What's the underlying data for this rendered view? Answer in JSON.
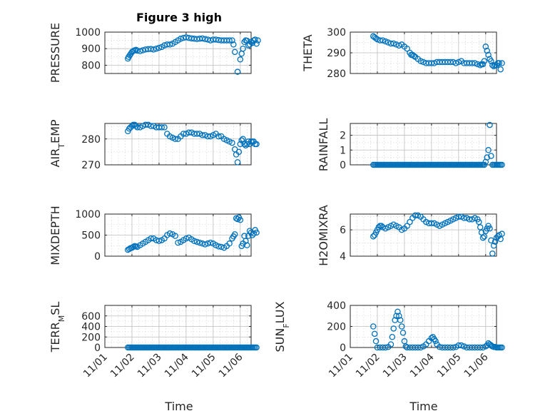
{
  "title": "Figure 3 high",
  "colors": {
    "series": "#0072BD",
    "axes": "#262626"
  },
  "chart_data": [
    {
      "type": "scatter",
      "ylabel": "PRESSURE",
      "xlim": [
        0,
        5.4
      ],
      "ylim": [
        750,
        1000
      ],
      "yticks": [
        800,
        900,
        1000
      ],
      "ytick_labels": [
        "800",
        "900",
        "1000"
      ],
      "minor_y": [
        850,
        950
      ],
      "grid": true,
      "x": [
        0.85,
        0.88,
        0.92,
        0.96,
        1.0,
        1.05,
        1.1,
        1.15,
        1.2,
        1.3,
        1.4,
        1.5,
        1.6,
        1.7,
        1.8,
        1.9,
        2.0,
        2.1,
        2.2,
        2.3,
        2.4,
        2.5,
        2.6,
        2.7,
        2.8,
        2.9,
        3.0,
        3.1,
        3.2,
        3.3,
        3.4,
        3.5,
        3.6,
        3.7,
        3.8,
        3.9,
        4.0,
        4.1,
        4.2,
        4.3,
        4.4,
        4.5,
        4.6,
        4.7,
        4.8,
        4.9,
        5.0,
        5.05,
        5.1,
        5.15,
        5.2,
        5.25,
        5.3,
        5.35,
        5.4,
        5.45,
        5.5,
        5.55,
        5.6,
        5.65,
        4.75
      ],
      "y": [
        840,
        850,
        860,
        870,
        880,
        886,
        890,
        893,
        888,
        885,
        890,
        895,
        897,
        898,
        895,
        900,
        905,
        910,
        920,
        925,
        925,
        930,
        940,
        950,
        960,
        965,
        968,
        965,
        962,
        960,
        958,
        960,
        962,
        958,
        955,
        950,
        955,
        955,
        952,
        950,
        950,
        950,
        950,
        950,
        880,
        760,
        835,
        870,
        900,
        940,
        950,
        948,
        920,
        925,
        940,
        935,
        950,
        955,
        930,
        950,
        925
      ]
    },
    {
      "type": "scatter",
      "ylabel": "THETA",
      "xlim": [
        0,
        5.4
      ],
      "ylim": [
        280,
        300
      ],
      "yticks": [
        280,
        290,
        300
      ],
      "ytick_labels": [
        "280",
        "290",
        "300"
      ],
      "minor_y": [
        285,
        295
      ],
      "grid": true,
      "x": [
        0.85,
        0.9,
        0.95,
        1.0,
        1.1,
        1.2,
        1.3,
        1.4,
        1.5,
        1.6,
        1.7,
        1.8,
        1.9,
        2.0,
        2.1,
        2.2,
        2.25,
        2.3,
        2.35,
        2.4,
        2.5,
        2.6,
        2.7,
        2.8,
        2.9,
        3.0,
        3.1,
        3.2,
        3.3,
        3.4,
        3.5,
        3.6,
        3.7,
        3.8,
        3.9,
        4.0,
        4.1,
        4.2,
        4.3,
        4.4,
        4.5,
        4.6,
        4.7,
        4.8,
        4.85,
        4.9,
        4.95,
        5.0,
        5.05,
        5.1,
        5.15,
        5.2,
        5.25,
        5.3,
        5.35,
        5.4,
        5.45,
        5.5,
        5.55,
        5.6
      ],
      "y": [
        298,
        297.5,
        297,
        296.5,
        296,
        296,
        295.5,
        295,
        294.5,
        294.5,
        294,
        293.5,
        294,
        293,
        292,
        290,
        289,
        289,
        288.5,
        288,
        287,
        286,
        285.5,
        285,
        285,
        285,
        285,
        285.5,
        285.5,
        285.5,
        285.5,
        285.5,
        285.5,
        285.5,
        285,
        285.5,
        286,
        285,
        285,
        285,
        285,
        285,
        284.5,
        284,
        284.5,
        284.5,
        286,
        293,
        291,
        289,
        287,
        286,
        284,
        283.5,
        284,
        284,
        285,
        285,
        282,
        285
      ]
    },
    {
      "type": "scatter",
      "ylabel": "AIR_TEMP",
      "xlim": [
        0,
        5.4
      ],
      "ylim": [
        270,
        286
      ],
      "yticks": [
        270,
        280
      ],
      "ytick_labels": [
        "270",
        "280"
      ],
      "minor_y": [
        275,
        285
      ],
      "grid": true,
      "x": [
        0.85,
        0.9,
        0.95,
        1.0,
        1.05,
        1.1,
        1.15,
        1.2,
        1.3,
        1.4,
        1.5,
        1.6,
        1.7,
        1.8,
        1.9,
        2.0,
        2.1,
        2.2,
        2.3,
        2.4,
        2.5,
        2.6,
        2.7,
        2.8,
        2.9,
        3.0,
        3.1,
        3.2,
        3.3,
        3.4,
        3.5,
        3.6,
        3.7,
        3.8,
        3.9,
        4.0,
        4.1,
        4.2,
        4.3,
        4.4,
        4.5,
        4.6,
        4.7,
        4.8,
        4.85,
        4.9,
        4.95,
        5.0,
        5.05,
        5.1,
        5.15,
        5.2,
        5.25,
        5.3,
        5.35,
        5.4,
        5.45,
        5.5,
        5.55,
        5.6
      ],
      "y": [
        283,
        284,
        284.5,
        285,
        285.5,
        285.5,
        285,
        284.5,
        284.5,
        285,
        285.5,
        285.5,
        285,
        285,
        284.5,
        284.5,
        284.5,
        284.5,
        282,
        281,
        280.5,
        280,
        280,
        281,
        282,
        282,
        282.5,
        282.5,
        282,
        282,
        282,
        281.5,
        281.5,
        281,
        281,
        281.5,
        282,
        281,
        281,
        280,
        279.5,
        279,
        278.5,
        276,
        274,
        271,
        275,
        278,
        279.5,
        280,
        278,
        277.5,
        278,
        279,
        278,
        279,
        279,
        279,
        278,
        278
      ]
    },
    {
      "type": "scatter",
      "ylabel": "RAINFALL",
      "xlim": [
        0,
        5.4
      ],
      "ylim": [
        0,
        2.8
      ],
      "yticks": [
        0,
        1,
        2
      ],
      "ytick_labels": [
        "0",
        "1",
        "2"
      ],
      "minor_y": [
        0.5,
        1.5,
        2.5
      ],
      "grid": true,
      "x": [
        0.85,
        0.9,
        0.95,
        1.0,
        1.05,
        1.1,
        1.15,
        1.2,
        1.25,
        1.3,
        1.35,
        1.4,
        1.45,
        1.5,
        1.55,
        1.6,
        1.65,
        1.7,
        1.75,
        1.8,
        1.85,
        1.9,
        1.95,
        2.0,
        2.05,
        2.1,
        2.15,
        2.2,
        2.25,
        2.3,
        2.35,
        2.4,
        2.45,
        2.5,
        2.55,
        2.6,
        2.65,
        2.7,
        2.75,
        2.8,
        2.85,
        2.9,
        2.95,
        3.0,
        3.05,
        3.1,
        3.15,
        3.2,
        3.25,
        3.3,
        3.35,
        3.4,
        3.45,
        3.5,
        3.55,
        3.6,
        3.65,
        3.7,
        3.75,
        3.8,
        3.85,
        3.9,
        3.95,
        4.0,
        4.05,
        4.1,
        4.15,
        4.2,
        4.25,
        4.3,
        4.35,
        4.4,
        4.45,
        4.5,
        4.55,
        4.6,
        4.65,
        4.7,
        4.75,
        4.8,
        4.85,
        4.9,
        4.95,
        5.0,
        5.05,
        5.1,
        5.15,
        5.2,
        5.25,
        5.3,
        5.35,
        5.4,
        5.45,
        5.5,
        5.55,
        5.6
      ],
      "y": [
        0,
        0,
        0,
        0,
        0,
        0,
        0,
        0,
        0,
        0,
        0,
        0,
        0,
        0,
        0,
        0,
        0,
        0,
        0,
        0,
        0,
        0,
        0,
        0,
        0,
        0,
        0,
        0,
        0,
        0,
        0,
        0,
        0,
        0,
        0,
        0,
        0,
        0,
        0,
        0,
        0,
        0,
        0,
        0,
        0,
        0,
        0,
        0,
        0,
        0,
        0,
        0,
        0,
        0,
        0,
        0,
        0,
        0,
        0,
        0,
        0,
        0,
        0,
        0,
        0,
        0,
        0,
        0,
        0,
        0,
        0,
        0,
        0,
        0,
        0,
        0,
        0,
        0,
        0,
        0,
        0,
        0,
        0,
        0.2,
        0.5,
        1.0,
        2.7,
        0.6,
        0,
        0,
        0,
        0,
        0,
        0,
        0,
        0
      ]
    },
    {
      "type": "scatter",
      "ylabel": "MIXDEPTH",
      "xlim": [
        0,
        5.4
      ],
      "ylim": [
        0,
        1000
      ],
      "yticks": [
        0,
        500,
        1000
      ],
      "ytick_labels": [
        "0",
        "500",
        "1000"
      ],
      "minor_y": [
        250,
        750
      ],
      "grid": true,
      "x": [
        0.85,
        0.9,
        0.95,
        1.0,
        1.05,
        1.1,
        1.15,
        1.2,
        1.3,
        1.4,
        1.5,
        1.6,
        1.7,
        1.8,
        1.9,
        2.0,
        2.1,
        2.2,
        2.3,
        2.4,
        2.5,
        2.6,
        2.7,
        2.8,
        2.9,
        3.0,
        3.1,
        3.2,
        3.3,
        3.4,
        3.5,
        3.6,
        3.7,
        3.8,
        3.9,
        4.0,
        4.1,
        4.2,
        4.3,
        4.4,
        4.5,
        4.6,
        4.7,
        4.75,
        4.8,
        4.85,
        4.9,
        4.95,
        5.0,
        5.05,
        5.1,
        5.15,
        5.2,
        5.25,
        5.3,
        5.35,
        5.4,
        5.45,
        5.5,
        5.55,
        5.6
      ],
      "y": [
        150,
        170,
        190,
        200,
        220,
        240,
        230,
        220,
        260,
        300,
        340,
        380,
        420,
        420,
        380,
        360,
        380,
        420,
        500,
        540,
        520,
        480,
        320,
        340,
        380,
        420,
        440,
        400,
        360,
        340,
        320,
        300,
        280,
        300,
        320,
        300,
        260,
        230,
        220,
        200,
        240,
        300,
        420,
        470,
        520,
        900,
        880,
        920,
        860,
        240,
        300,
        480,
        360,
        260,
        480,
        600,
        560,
        500,
        540,
        620,
        560
      ]
    },
    {
      "type": "scatter",
      "ylabel": "H2OMIXRA",
      "xlim": [
        0,
        5.4
      ],
      "ylim": [
        4,
        7.2
      ],
      "yticks": [
        4,
        6
      ],
      "ytick_labels": [
        "4",
        "6"
      ],
      "minor_y": [
        5,
        7
      ],
      "grid": true,
      "x": [
        0.85,
        0.9,
        0.95,
        1.0,
        1.05,
        1.1,
        1.15,
        1.2,
        1.3,
        1.4,
        1.5,
        1.6,
        1.7,
        1.8,
        1.9,
        2.0,
        2.1,
        2.2,
        2.3,
        2.4,
        2.5,
        2.6,
        2.7,
        2.8,
        2.9,
        3.0,
        3.1,
        3.2,
        3.3,
        3.4,
        3.5,
        3.6,
        3.7,
        3.8,
        3.9,
        4.0,
        4.1,
        4.2,
        4.3,
        4.4,
        4.5,
        4.6,
        4.7,
        4.75,
        4.8,
        4.85,
        4.9,
        4.95,
        5.0,
        5.05,
        5.1,
        5.15,
        5.2,
        5.25,
        5.3,
        5.35,
        5.4,
        5.45,
        5.5,
        5.55,
        5.6
      ],
      "y": [
        5.5,
        5.6,
        5.8,
        6.0,
        6.2,
        6.3,
        6.3,
        6.2,
        6.1,
        6.2,
        6.3,
        6.4,
        6.3,
        6.2,
        6.0,
        6.1,
        6.3,
        6.6,
        6.9,
        7.1,
        7.1,
        7.0,
        6.8,
        6.6,
        6.5,
        6.5,
        6.5,
        6.4,
        6.3,
        6.4,
        6.5,
        6.6,
        6.7,
        6.8,
        6.9,
        7.0,
        7.0,
        6.9,
        6.9,
        6.8,
        6.8,
        6.9,
        6.8,
        6.6,
        6.2,
        5.8,
        5.4,
        5.5,
        5.9,
        6.1,
        6.3,
        6.1,
        5.2,
        4.2,
        4.8,
        5.1,
        5.4,
        5.5,
        5.6,
        5.3,
        5.7
      ]
    },
    {
      "type": "scatter",
      "ylabel": "TERR_MSL",
      "xlim": [
        0,
        5.4
      ],
      "ylim": [
        0,
        800
      ],
      "yticks": [
        0,
        200,
        400,
        600
      ],
      "ytick_labels": [
        "0",
        "200",
        "400",
        "600"
      ],
      "minor_y": [
        100,
        300,
        500,
        700
      ],
      "grid": true,
      "x": [
        0.85,
        0.9,
        0.95,
        1.0,
        1.05,
        1.1,
        1.15,
        1.2,
        1.25,
        1.3,
        1.35,
        1.4,
        1.45,
        1.5,
        1.55,
        1.6,
        1.65,
        1.7,
        1.75,
        1.8,
        1.85,
        1.9,
        1.95,
        2.0,
        2.05,
        2.1,
        2.15,
        2.2,
        2.25,
        2.3,
        2.35,
        2.4,
        2.45,
        2.5,
        2.55,
        2.6,
        2.65,
        2.7,
        2.75,
        2.8,
        2.85,
        2.9,
        2.95,
        3.0,
        3.05,
        3.1,
        3.15,
        3.2,
        3.25,
        3.3,
        3.35,
        3.4,
        3.45,
        3.5,
        3.55,
        3.6,
        3.65,
        3.7,
        3.75,
        3.8,
        3.85,
        3.9,
        3.95,
        4.0,
        4.05,
        4.1,
        4.15,
        4.2,
        4.25,
        4.3,
        4.35,
        4.4,
        4.45,
        4.5,
        4.55,
        4.6,
        4.65,
        4.7,
        4.75,
        4.8,
        4.85,
        4.9,
        4.95,
        5.0,
        5.05,
        5.1,
        5.15,
        5.2,
        5.25,
        5.3,
        5.35,
        5.4,
        5.45,
        5.5,
        5.55,
        5.6
      ],
      "y": [
        0,
        0,
        0,
        0,
        0,
        0,
        0,
        0,
        0,
        0,
        0,
        0,
        0,
        0,
        0,
        0,
        0,
        0,
        0,
        0,
        0,
        0,
        0,
        0,
        0,
        0,
        0,
        0,
        0,
        0,
        0,
        0,
        0,
        0,
        0,
        0,
        0,
        0,
        0,
        0,
        0,
        0,
        0,
        0,
        0,
        0,
        0,
        0,
        0,
        0,
        0,
        0,
        0,
        0,
        0,
        0,
        0,
        0,
        0,
        0,
        0,
        0,
        0,
        0,
        0,
        0,
        0,
        0,
        0,
        0,
        0,
        0,
        0,
        0,
        0,
        0,
        0,
        0,
        0,
        0,
        0,
        0,
        0,
        0,
        0,
        0,
        0,
        0,
        0,
        0,
        0,
        0,
        0,
        0,
        0,
        0
      ]
    },
    {
      "type": "scatter",
      "ylabel": "SUN_FLUX",
      "xlim": [
        0,
        5.4
      ],
      "ylim": [
        0,
        400
      ],
      "yticks": [
        0,
        200,
        400
      ],
      "ytick_labels": [
        "0",
        "200",
        "400"
      ],
      "minor_y": [
        100,
        300
      ],
      "grid": true,
      "x": [
        0.85,
        0.9,
        0.95,
        1.0,
        1.1,
        1.2,
        1.3,
        1.4,
        1.5,
        1.55,
        1.6,
        1.65,
        1.7,
        1.75,
        1.8,
        1.85,
        1.9,
        1.95,
        2.0,
        2.05,
        2.1,
        2.2,
        2.3,
        2.4,
        2.5,
        2.6,
        2.7,
        2.8,
        2.9,
        3.0,
        3.05,
        3.1,
        3.15,
        3.2,
        3.3,
        3.4,
        3.5,
        3.6,
        3.7,
        3.8,
        3.9,
        4.0,
        4.1,
        4.2,
        4.3,
        4.4,
        4.5,
        4.6,
        4.7,
        4.8,
        4.9,
        5.0,
        5.05,
        5.1,
        5.15,
        5.2,
        5.25,
        5.3,
        5.35,
        5.4,
        5.45,
        5.5,
        5.55,
        5.6
      ],
      "y": [
        200,
        130,
        60,
        0,
        0,
        0,
        0,
        5,
        30,
        100,
        180,
        260,
        300,
        340,
        300,
        260,
        200,
        140,
        60,
        10,
        0,
        0,
        0,
        0,
        0,
        0,
        10,
        30,
        60,
        90,
        100,
        80,
        60,
        30,
        5,
        0,
        0,
        0,
        0,
        0,
        5,
        20,
        20,
        10,
        0,
        0,
        0,
        0,
        0,
        0,
        0,
        10,
        20,
        40,
        30,
        20,
        10,
        5,
        5,
        0,
        0,
        0,
        0,
        0
      ]
    }
  ],
  "x_axis": {
    "tick_labels": [
      "11/01",
      "11/02",
      "11/03",
      "11/04",
      "11/05",
      "11/06"
    ],
    "label": "Time"
  },
  "labels": {
    "pressure": "PRESSURE",
    "theta": "THETA",
    "air_temp": {
      "main": "AIR",
      "sub": "T",
      "rest": "EMP"
    },
    "rainfall": "RAINFALL",
    "mixdepth": "MIXDEPTH",
    "h2omixra": "H2OMIXRA",
    "terr_msl": {
      "main": "TERR",
      "sub": "M",
      "rest": "SL"
    },
    "sun_flux": {
      "main": "SUN",
      "sub": "F",
      "rest": "LUX"
    }
  }
}
